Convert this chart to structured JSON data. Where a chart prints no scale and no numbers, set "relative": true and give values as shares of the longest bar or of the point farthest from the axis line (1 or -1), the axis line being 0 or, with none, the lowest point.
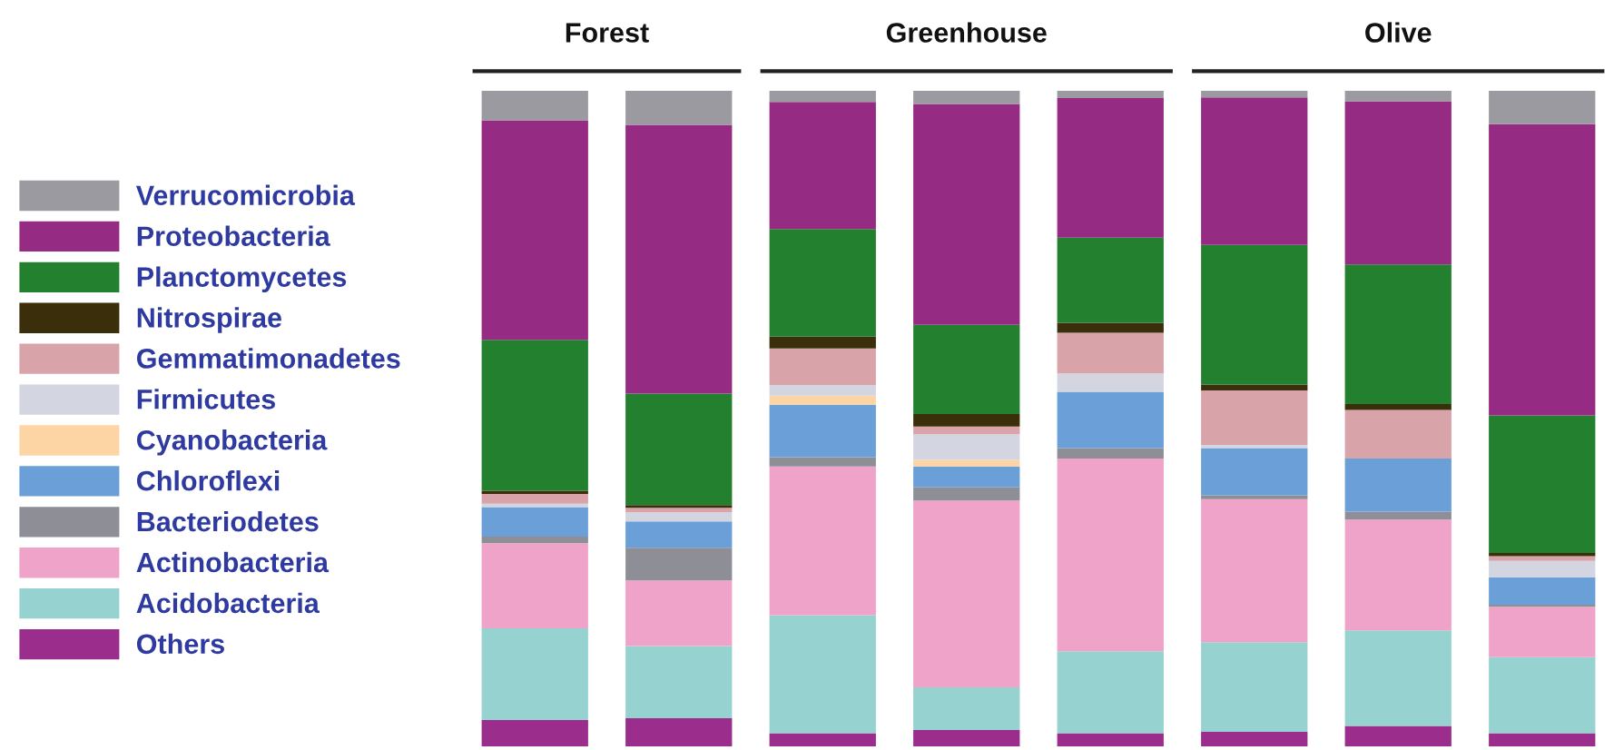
{
  "chart_data": {
    "type": "bar",
    "stacked": true,
    "relative": true,
    "legend": "left",
    "grid": false,
    "categories": [
      null,
      null,
      null,
      null,
      null,
      null,
      null,
      null
    ],
    "annotations": [
      "Forest",
      "Greenhouse",
      "Olive"
    ],
    "series": [
      {
        "name": "Others",
        "color": "#9b2d8c",
        "values": [
          0.04,
          0.043,
          0.02,
          0.025,
          0.02,
          0.022,
          0.031,
          0.02
        ]
      },
      {
        "name": "Acidobacteria",
        "color": "#96d3d0",
        "values": [
          0.14,
          0.11,
          0.18,
          0.065,
          0.125,
          0.137,
          0.146,
          0.116
        ]
      },
      {
        "name": "Actinobacteria",
        "color": "#f0a3c8",
        "values": [
          0.13,
          0.1,
          0.227,
          0.285,
          0.294,
          0.218,
          0.169,
          0.077
        ]
      },
      {
        "name": "Bacteriodetes",
        "color": "#8e8e96",
        "values": [
          0.01,
          0.05,
          0.014,
          0.02,
          0.016,
          0.006,
          0.012,
          0.003
        ]
      },
      {
        "name": "Chloroflexi",
        "color": "#6a9fd8",
        "values": [
          0.045,
          0.04,
          0.08,
          0.032,
          0.086,
          0.072,
          0.081,
          0.042
        ]
      },
      {
        "name": "Cyanobacteria",
        "color": "#fdd5a5",
        "values": [
          0.0,
          0.0,
          0.014,
          0.01,
          0.0,
          0.0,
          0.0,
          0.0
        ]
      },
      {
        "name": "Firmicutes",
        "color": "#d3d6e0",
        "values": [
          0.005,
          0.014,
          0.016,
          0.039,
          0.028,
          0.005,
          null,
          0.025
        ]
      },
      {
        "name": "Gemmatimonadetes",
        "color": "#d9a3aa",
        "values": [
          0.015,
          0.007,
          0.056,
          0.012,
          0.062,
          0.083,
          0.074,
          0.007
        ]
      },
      {
        "name": "Nitrospirae",
        "color": "#3a2f0a",
        "values": [
          0.005,
          0.004,
          0.018,
          0.019,
          0.015,
          0.009,
          0.009,
          0.005
        ]
      },
      {
        "name": "Planctomycetes",
        "color": "#23802f",
        "values": [
          0.23,
          0.17,
          0.164,
          0.136,
          0.13,
          0.213,
          0.213,
          0.21
        ]
      },
      {
        "name": "Proteobacteria",
        "color": "#962b84",
        "values": [
          0.335,
          0.41,
          0.194,
          0.337,
          0.213,
          0.225,
          0.249,
          0.444
        ]
      },
      {
        "name": "Verrucomicrobia",
        "color": "#9a9aa0",
        "values": [
          0.045,
          0.052,
          0.017,
          0.02,
          0.011,
          0.01,
          0.016,
          0.051
        ]
      }
    ]
  }
}
